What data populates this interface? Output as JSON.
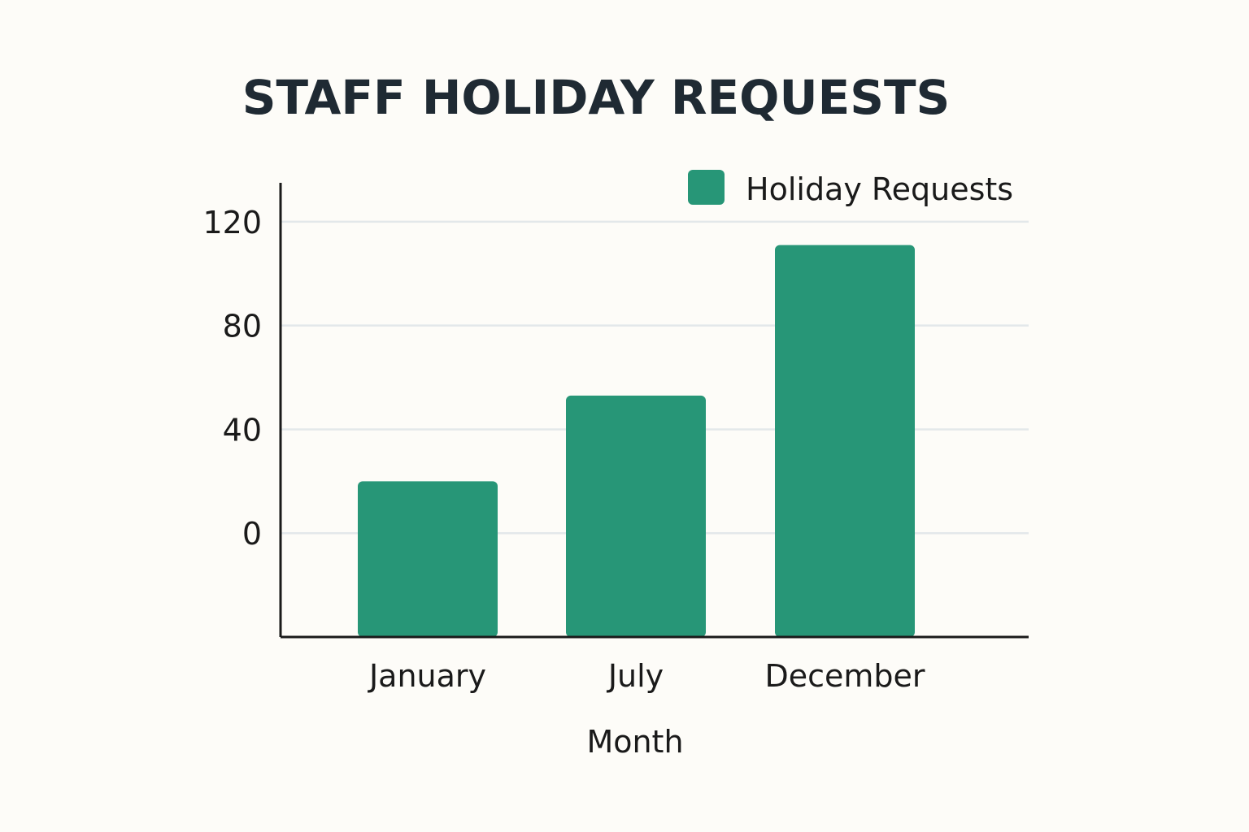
{
  "chart_data": {
    "type": "bar",
    "title": "STAFF HOLIDAY REQUESTS",
    "xlabel": "Month",
    "ylabel": "",
    "categories": [
      "January",
      "July",
      "December"
    ],
    "series": [
      {
        "name": "Holiday Requests",
        "values": [
          20,
          53,
          111
        ]
      }
    ],
    "y_ticks": [
      0,
      40,
      80,
      120
    ],
    "ylim": [
      -40,
      135
    ],
    "grid": true,
    "legend_position": "top-right",
    "colors": {
      "bar": "#279677",
      "axis": "#1a1a1a",
      "grid": "#e3e8ea",
      "background": "#fdfcf8"
    }
  }
}
